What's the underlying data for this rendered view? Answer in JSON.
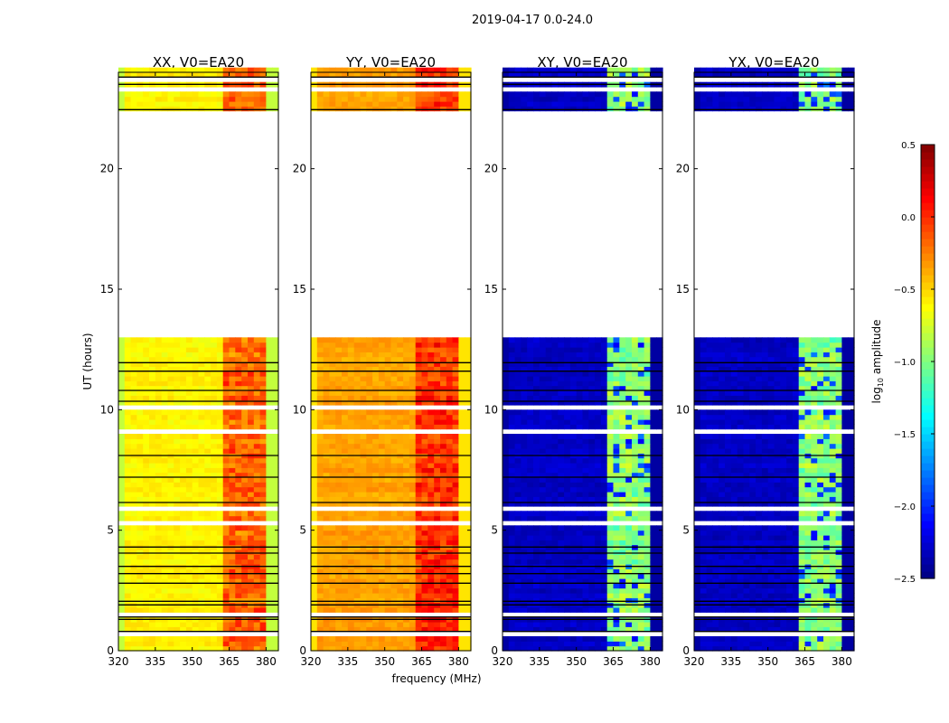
{
  "chart_data": {
    "type": "heatmap",
    "title": "2019-04-17 0.0-24.0",
    "xlabel": "frequency (MHz)",
    "ylabel": "UT (hours)",
    "xlim": [
      320,
      385
    ],
    "ylim": [
      0,
      24
    ],
    "xticks": [
      "320",
      "335",
      "350",
      "365",
      "380"
    ],
    "xtick_values": [
      320,
      335,
      350,
      365,
      380
    ],
    "yticks": [
      "0",
      "5",
      "10",
      "15",
      "20"
    ],
    "ytick_values": [
      0,
      5,
      10,
      15,
      20
    ],
    "colorbar": {
      "label": "log10 amplitude",
      "label_main": "log",
      "label_sub": "10",
      "label_rest": " amplitude",
      "range": [
        -2.5,
        0.5
      ],
      "ticks": [
        "0.5",
        "0.0",
        "−0.5",
        "−1.0",
        "−1.5",
        "−2.0",
        "−2.5"
      ],
      "tick_values": [
        0.5,
        0.0,
        -0.5,
        -1.0,
        -1.5,
        -2.0,
        -2.5
      ],
      "colormap": "jet"
    },
    "flagged_hours": [
      [
        0.62,
        0.72
      ],
      [
        1.5,
        1.62
      ],
      [
        2.85,
        2.9
      ],
      [
        4.95,
        5.0
      ],
      [
        5.3,
        5.35
      ],
      [
        5.85,
        6.05
      ],
      [
        6.55,
        6.6
      ],
      [
        7.55,
        7.6
      ],
      [
        8.55,
        8.6
      ],
      [
        8.8,
        8.85
      ],
      [
        9.1,
        9.15
      ],
      [
        9.5,
        9.55
      ],
      [
        9.95,
        10.25
      ],
      [
        11.9,
        12.0
      ],
      [
        12.35,
        12.45
      ],
      [
        13.0,
        22.4
      ],
      [
        22.9,
        23.0
      ],
      [
        23.2,
        23.3
      ],
      [
        23.6,
        23.7
      ]
    ],
    "black_line_hours": [
      0.8,
      1.3,
      1.4,
      1.9,
      2.05,
      2.8,
      3.2,
      3.5,
      4.05,
      4.3,
      6.15,
      7.2,
      8.1,
      10.35,
      10.8,
      11.6,
      11.95,
      22.45,
      23.5,
      23.8
    ],
    "band_mhz": [
      362,
      380
    ],
    "panels": [
      {
        "title": "XX, V0=EA20",
        "continuum": -0.6,
        "band": -0.2,
        "edge": -0.8
      },
      {
        "title": "YY, V0=EA20",
        "continuum": -0.35,
        "band": -0.05,
        "edge": -0.55
      },
      {
        "title": "XY, V0=EA20",
        "continuum": -2.3,
        "band": -1.0,
        "edge": -2.4
      },
      {
        "title": "YX, V0=EA20",
        "continuum": -2.3,
        "band": -1.0,
        "edge": -2.4
      }
    ]
  }
}
